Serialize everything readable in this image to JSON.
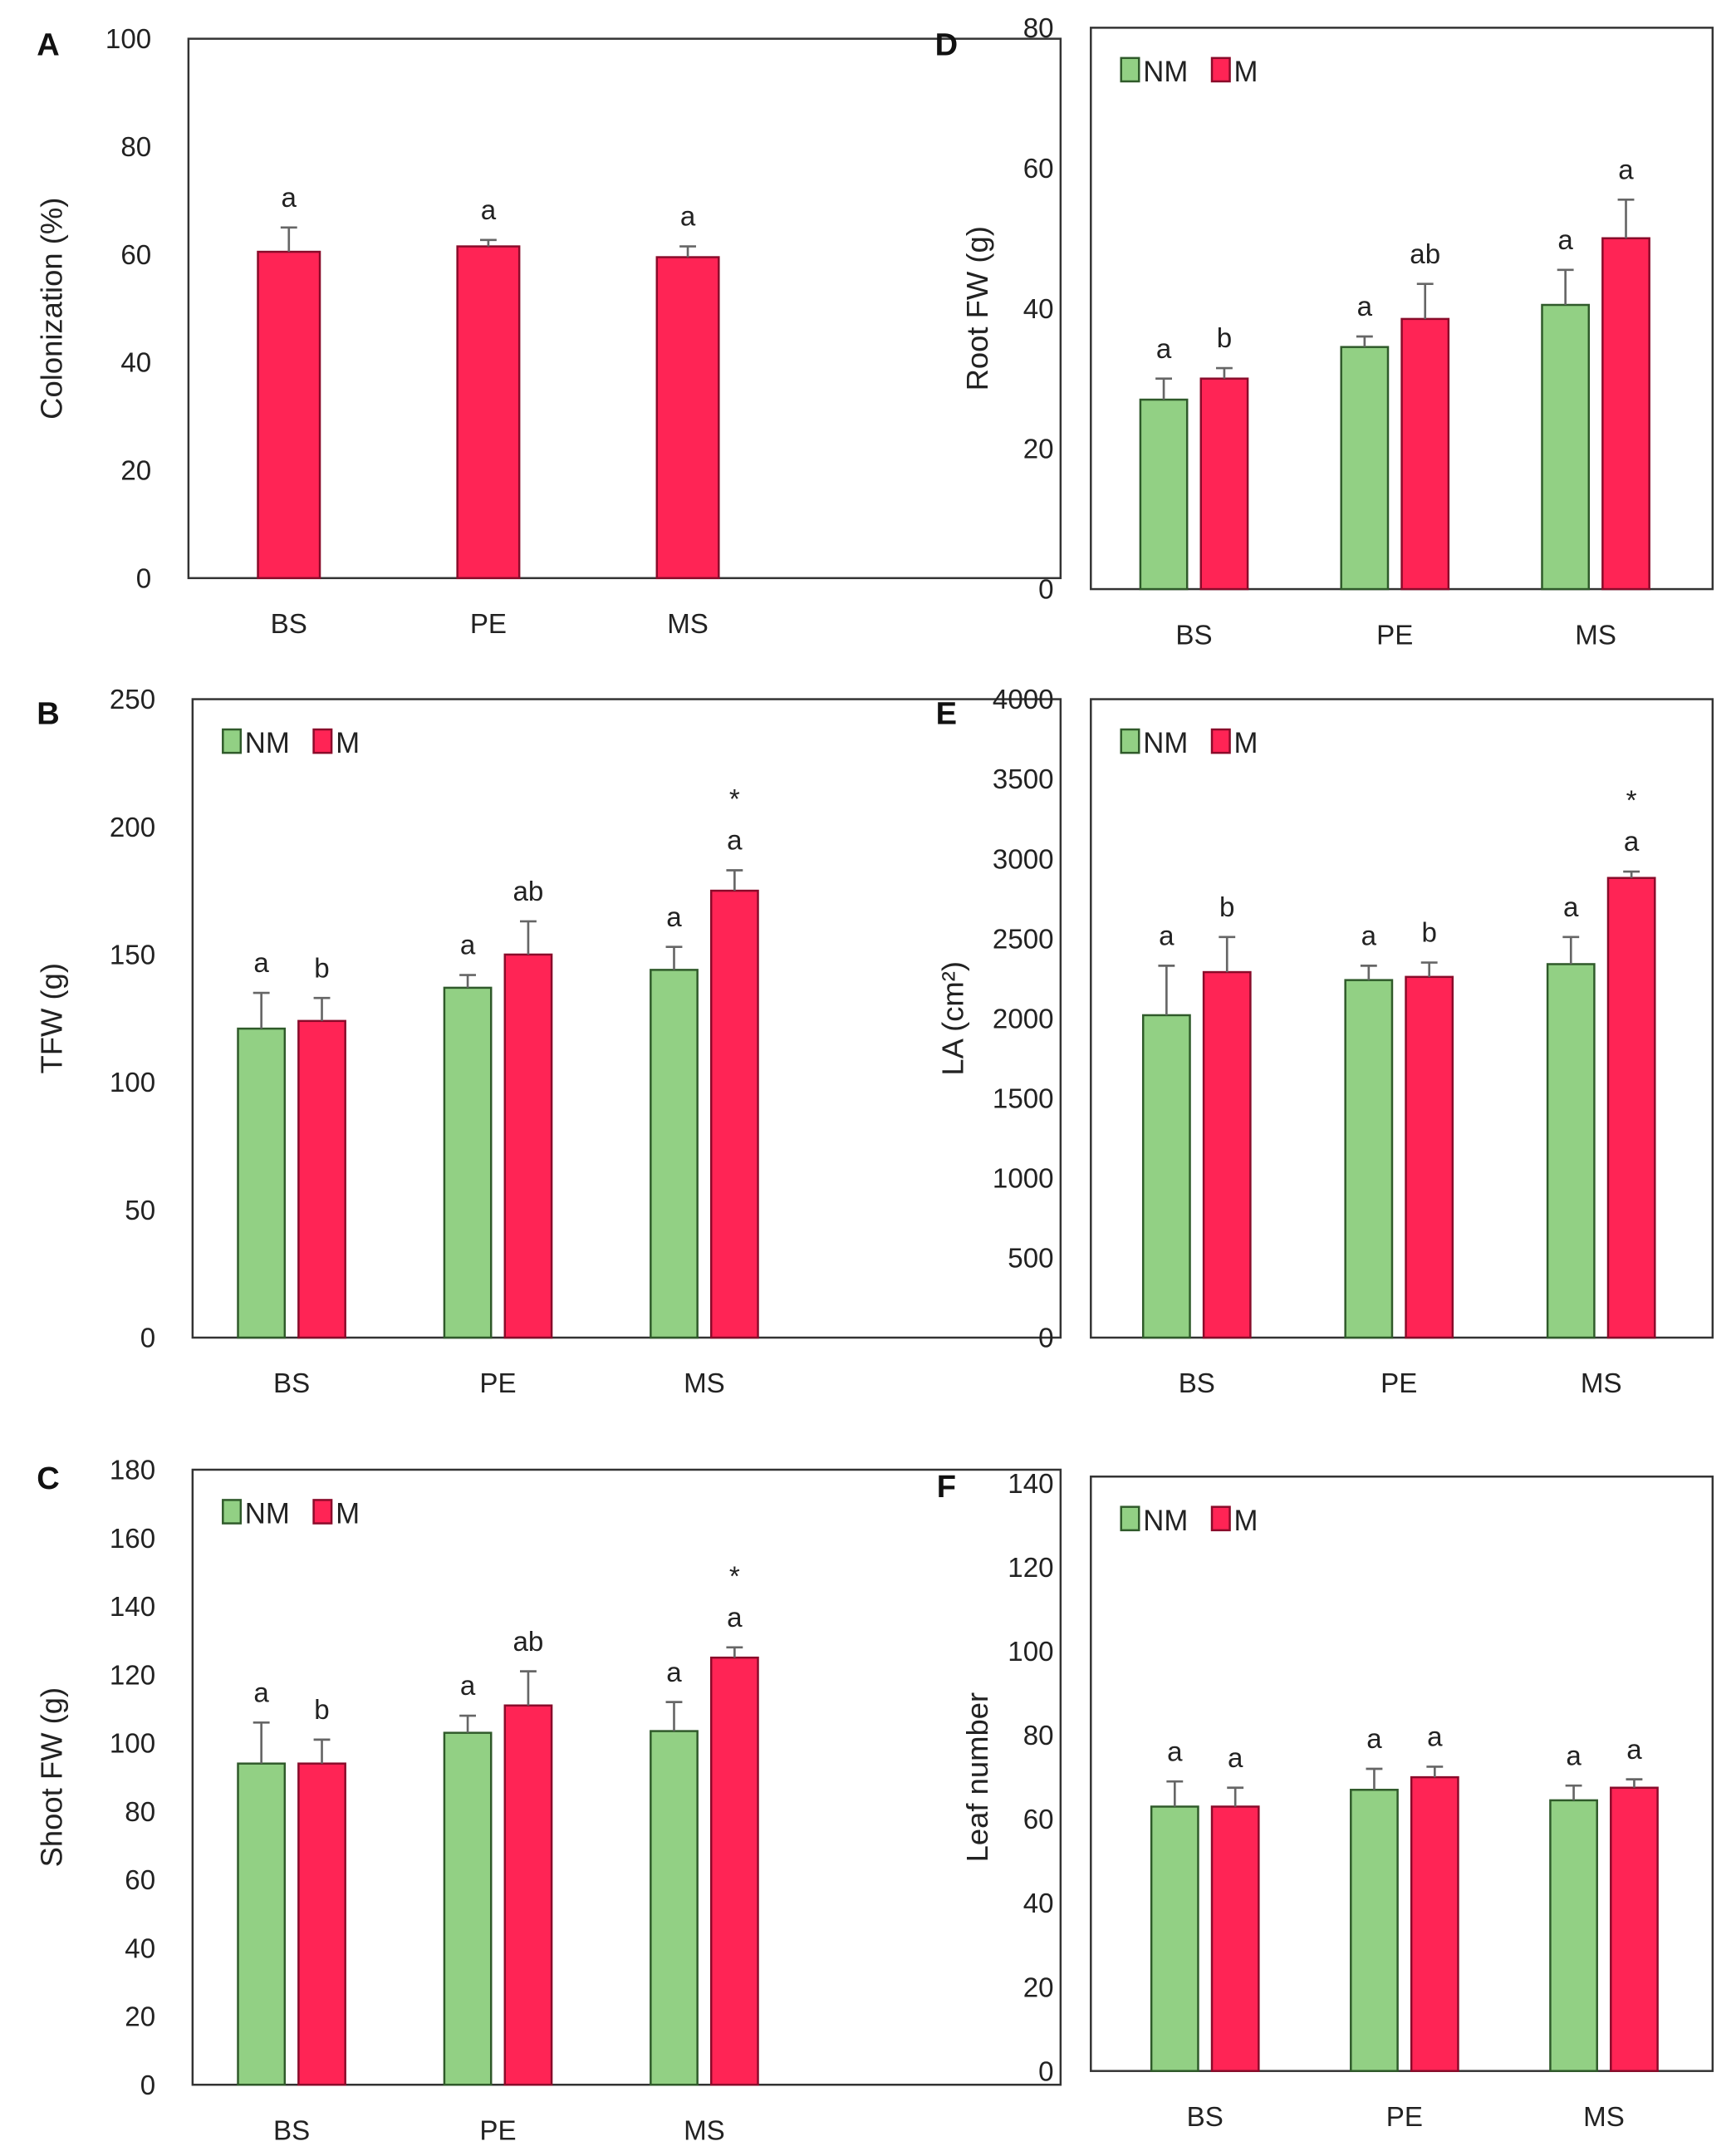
{
  "colors": {
    "NM": "#92d084",
    "NM_border": "#2f5a2a",
    "M": "#ff2455",
    "M_border": "#8a0b2a",
    "error": "#666666"
  },
  "chart_data": [
    {
      "panel": "A",
      "type": "bar",
      "ylabel": "Colonization (%)",
      "ylim": [
        0,
        100
      ],
      "ystep": 20,
      "categories": [
        "BS",
        "PE",
        "MS"
      ],
      "legend": false,
      "series": [
        {
          "name": "M",
          "values": [
            60.5,
            61.5,
            59.5
          ],
          "errors": [
            4.5,
            1.2,
            2.0
          ],
          "letters": [
            "a",
            "a",
            "a"
          ]
        }
      ],
      "stars": [
        "",
        "",
        ""
      ]
    },
    {
      "panel": "D",
      "type": "bar",
      "ylabel": "Root FW (g)",
      "ylim": [
        0,
        80
      ],
      "ystep": 20,
      "categories": [
        "BS",
        "PE",
        "MS"
      ],
      "legend": true,
      "series": [
        {
          "name": "NM",
          "values": [
            27,
            34.5,
            40.5
          ],
          "errors": [
            3,
            1.5,
            5
          ],
          "letters": [
            "a",
            "a",
            "a"
          ]
        },
        {
          "name": "M",
          "values": [
            30,
            38.5,
            50
          ],
          "errors": [
            1.5,
            5,
            5.5
          ],
          "letters": [
            "b",
            "ab",
            "a"
          ]
        }
      ],
      "stars": [
        "",
        "",
        ""
      ]
    },
    {
      "panel": "B",
      "type": "bar",
      "ylabel": "TFW (g)",
      "ylim": [
        0,
        250
      ],
      "ystep": 50,
      "categories": [
        "BS",
        "PE",
        "MS"
      ],
      "legend": true,
      "series": [
        {
          "name": "NM",
          "values": [
            121,
            137,
            144
          ],
          "errors": [
            14,
            5,
            9
          ],
          "letters": [
            "a",
            "a",
            "a"
          ]
        },
        {
          "name": "M",
          "values": [
            124,
            150,
            175
          ],
          "errors": [
            9,
            13,
            8
          ],
          "letters": [
            "b",
            "ab",
            "a"
          ]
        }
      ],
      "stars": [
        "",
        "",
        "*"
      ]
    },
    {
      "panel": "E",
      "type": "bar",
      "ylabel": "LA (cm²)",
      "ylim": [
        0,
        4000
      ],
      "ystep": 500,
      "categories": [
        "BS",
        "PE",
        "MS"
      ],
      "legend": true,
      "series": [
        {
          "name": "NM",
          "values": [
            2020,
            2240,
            2340
          ],
          "errors": [
            310,
            90,
            170
          ],
          "letters": [
            "a",
            "a",
            "a"
          ]
        },
        {
          "name": "M",
          "values": [
            2290,
            2260,
            2880
          ],
          "errors": [
            220,
            90,
            40
          ],
          "letters": [
            "b",
            "b",
            "a"
          ]
        }
      ],
      "stars": [
        "",
        "",
        "*"
      ]
    },
    {
      "panel": "C",
      "type": "bar",
      "ylabel": "Shoot FW (g)",
      "ylim": [
        0,
        180
      ],
      "ystep": 20,
      "categories": [
        "BS",
        "PE",
        "MS"
      ],
      "legend": true,
      "series": [
        {
          "name": "NM",
          "values": [
            94,
            103,
            103.5
          ],
          "errors": [
            12,
            5,
            8.5
          ],
          "letters": [
            "a",
            "a",
            "a"
          ]
        },
        {
          "name": "M",
          "values": [
            94,
            111,
            125
          ],
          "errors": [
            7,
            10,
            3
          ],
          "letters": [
            "b",
            "ab",
            "a"
          ]
        }
      ],
      "stars": [
        "",
        "",
        "*"
      ]
    },
    {
      "panel": "F",
      "type": "bar",
      "ylabel": "Leaf number",
      "ylim": [
        0,
        140
      ],
      "ystep": 20,
      "categories": [
        "BS",
        "PE",
        "MS"
      ],
      "legend": true,
      "series": [
        {
          "name": "NM",
          "values": [
            63,
            67,
            64.5
          ],
          "errors": [
            6,
            5,
            3.5
          ],
          "letters": [
            "a",
            "a",
            "a"
          ]
        },
        {
          "name": "M",
          "values": [
            63,
            70,
            67.5
          ],
          "errors": [
            4.5,
            2.5,
            2
          ],
          "letters": [
            "a",
            "a",
            "a"
          ]
        }
      ],
      "stars": [
        "",
        "",
        ""
      ]
    }
  ]
}
